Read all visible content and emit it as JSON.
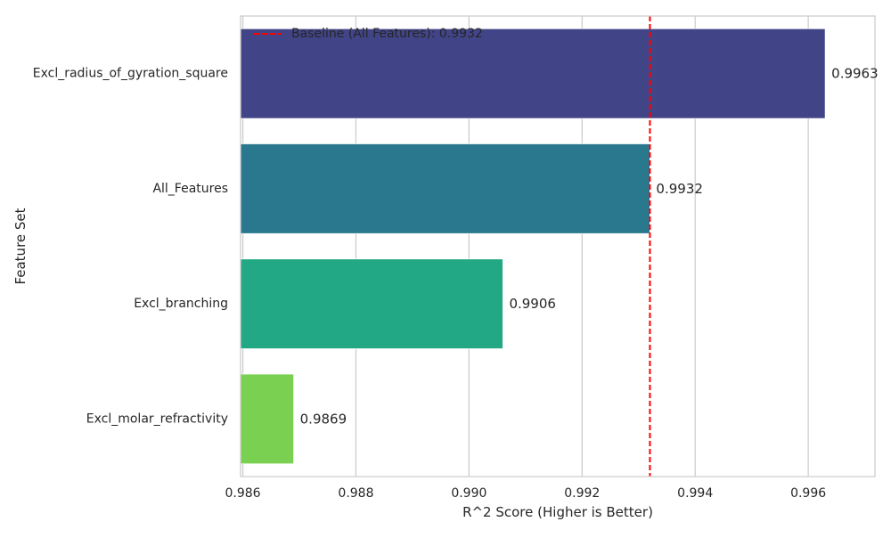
{
  "chart_data": {
    "type": "bar",
    "orientation": "horizontal",
    "categories": [
      "Excl_radius_of_gyration_square",
      "All_Features",
      "Excl_branching",
      "Excl_molar_refractivity"
    ],
    "values": [
      0.9963,
      0.9932,
      0.9906,
      0.9869
    ],
    "data_labels": [
      "0.9963",
      "0.9932",
      "0.9906",
      "0.9869"
    ],
    "colors": [
      "#414487",
      "#2a788e",
      "#22a884",
      "#7ad151"
    ],
    "title": "",
    "xlabel": "R^2 Score (Higher is Better)",
    "ylabel": "Feature Set",
    "xlim": [
      0.98596,
      0.99718
    ],
    "x_ticks": [
      0.986,
      0.988,
      0.99,
      0.992,
      0.994,
      0.996
    ],
    "x_tick_labels": [
      "0.986",
      "0.988",
      "0.990",
      "0.992",
      "0.994",
      "0.996"
    ],
    "grid": true,
    "baseline": {
      "value": 0.9932,
      "label": "Baseline (All Features): 0.9932",
      "color": "#ff0000",
      "style": "dashed"
    },
    "legend_position": "top-left"
  }
}
